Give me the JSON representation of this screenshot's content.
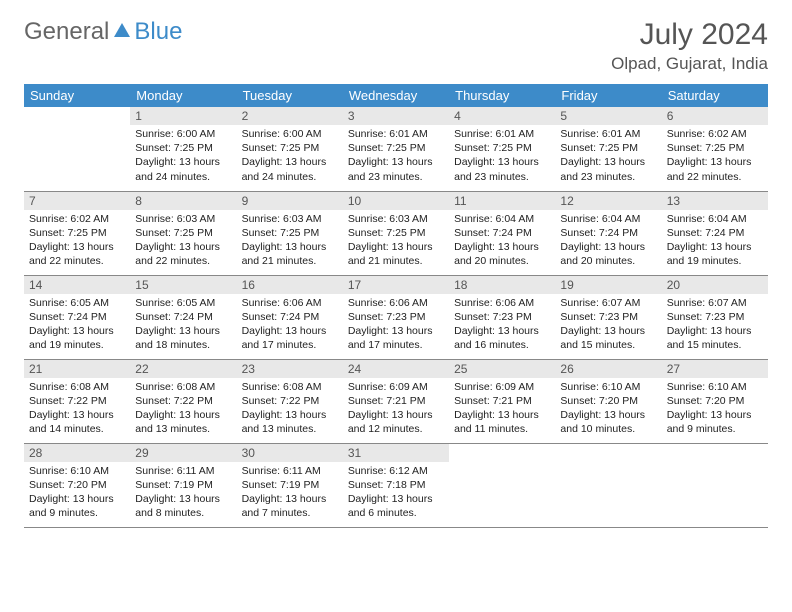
{
  "brand": {
    "general": "General",
    "blue": "Blue"
  },
  "header": {
    "title": "July 2024",
    "location": "Olpad, Gujarat, India"
  },
  "style": {
    "header_bg": "#3d8bc9",
    "header_fg": "#ffffff",
    "daynum_bg": "#e8e8e8",
    "daynum_fg": "#555555",
    "text_color": "#222222",
    "title_color": "#555555",
    "border_color": "#888888",
    "page_bg": "#ffffff",
    "font_family": "Arial",
    "title_fontsize": 30,
    "location_fontsize": 17,
    "dayheader_fontsize": 13,
    "daynum_fontsize": 12,
    "info_fontsize": 10.5
  },
  "dayNames": [
    "Sunday",
    "Monday",
    "Tuesday",
    "Wednesday",
    "Thursday",
    "Friday",
    "Saturday"
  ],
  "weeks": [
    [
      null,
      {
        "n": "1",
        "sr": "6:00 AM",
        "ss": "7:25 PM",
        "dl": "13 hours and 24 minutes."
      },
      {
        "n": "2",
        "sr": "6:00 AM",
        "ss": "7:25 PM",
        "dl": "13 hours and 24 minutes."
      },
      {
        "n": "3",
        "sr": "6:01 AM",
        "ss": "7:25 PM",
        "dl": "13 hours and 23 minutes."
      },
      {
        "n": "4",
        "sr": "6:01 AM",
        "ss": "7:25 PM",
        "dl": "13 hours and 23 minutes."
      },
      {
        "n": "5",
        "sr": "6:01 AM",
        "ss": "7:25 PM",
        "dl": "13 hours and 23 minutes."
      },
      {
        "n": "6",
        "sr": "6:02 AM",
        "ss": "7:25 PM",
        "dl": "13 hours and 22 minutes."
      }
    ],
    [
      {
        "n": "7",
        "sr": "6:02 AM",
        "ss": "7:25 PM",
        "dl": "13 hours and 22 minutes."
      },
      {
        "n": "8",
        "sr": "6:03 AM",
        "ss": "7:25 PM",
        "dl": "13 hours and 22 minutes."
      },
      {
        "n": "9",
        "sr": "6:03 AM",
        "ss": "7:25 PM",
        "dl": "13 hours and 21 minutes."
      },
      {
        "n": "10",
        "sr": "6:03 AM",
        "ss": "7:25 PM",
        "dl": "13 hours and 21 minutes."
      },
      {
        "n": "11",
        "sr": "6:04 AM",
        "ss": "7:24 PM",
        "dl": "13 hours and 20 minutes."
      },
      {
        "n": "12",
        "sr": "6:04 AM",
        "ss": "7:24 PM",
        "dl": "13 hours and 20 minutes."
      },
      {
        "n": "13",
        "sr": "6:04 AM",
        "ss": "7:24 PM",
        "dl": "13 hours and 19 minutes."
      }
    ],
    [
      {
        "n": "14",
        "sr": "6:05 AM",
        "ss": "7:24 PM",
        "dl": "13 hours and 19 minutes."
      },
      {
        "n": "15",
        "sr": "6:05 AM",
        "ss": "7:24 PM",
        "dl": "13 hours and 18 minutes."
      },
      {
        "n": "16",
        "sr": "6:06 AM",
        "ss": "7:24 PM",
        "dl": "13 hours and 17 minutes."
      },
      {
        "n": "17",
        "sr": "6:06 AM",
        "ss": "7:23 PM",
        "dl": "13 hours and 17 minutes."
      },
      {
        "n": "18",
        "sr": "6:06 AM",
        "ss": "7:23 PM",
        "dl": "13 hours and 16 minutes."
      },
      {
        "n": "19",
        "sr": "6:07 AM",
        "ss": "7:23 PM",
        "dl": "13 hours and 15 minutes."
      },
      {
        "n": "20",
        "sr": "6:07 AM",
        "ss": "7:23 PM",
        "dl": "13 hours and 15 minutes."
      }
    ],
    [
      {
        "n": "21",
        "sr": "6:08 AM",
        "ss": "7:22 PM",
        "dl": "13 hours and 14 minutes."
      },
      {
        "n": "22",
        "sr": "6:08 AM",
        "ss": "7:22 PM",
        "dl": "13 hours and 13 minutes."
      },
      {
        "n": "23",
        "sr": "6:08 AM",
        "ss": "7:22 PM",
        "dl": "13 hours and 13 minutes."
      },
      {
        "n": "24",
        "sr": "6:09 AM",
        "ss": "7:21 PM",
        "dl": "13 hours and 12 minutes."
      },
      {
        "n": "25",
        "sr": "6:09 AM",
        "ss": "7:21 PM",
        "dl": "13 hours and 11 minutes."
      },
      {
        "n": "26",
        "sr": "6:10 AM",
        "ss": "7:20 PM",
        "dl": "13 hours and 10 minutes."
      },
      {
        "n": "27",
        "sr": "6:10 AM",
        "ss": "7:20 PM",
        "dl": "13 hours and 9 minutes."
      }
    ],
    [
      {
        "n": "28",
        "sr": "6:10 AM",
        "ss": "7:20 PM",
        "dl": "13 hours and 9 minutes."
      },
      {
        "n": "29",
        "sr": "6:11 AM",
        "ss": "7:19 PM",
        "dl": "13 hours and 8 minutes."
      },
      {
        "n": "30",
        "sr": "6:11 AM",
        "ss": "7:19 PM",
        "dl": "13 hours and 7 minutes."
      },
      {
        "n": "31",
        "sr": "6:12 AM",
        "ss": "7:18 PM",
        "dl": "13 hours and 6 minutes."
      },
      null,
      null,
      null
    ]
  ],
  "labels": {
    "sunrise": "Sunrise: ",
    "sunset": "Sunset: ",
    "daylight": "Daylight: "
  }
}
